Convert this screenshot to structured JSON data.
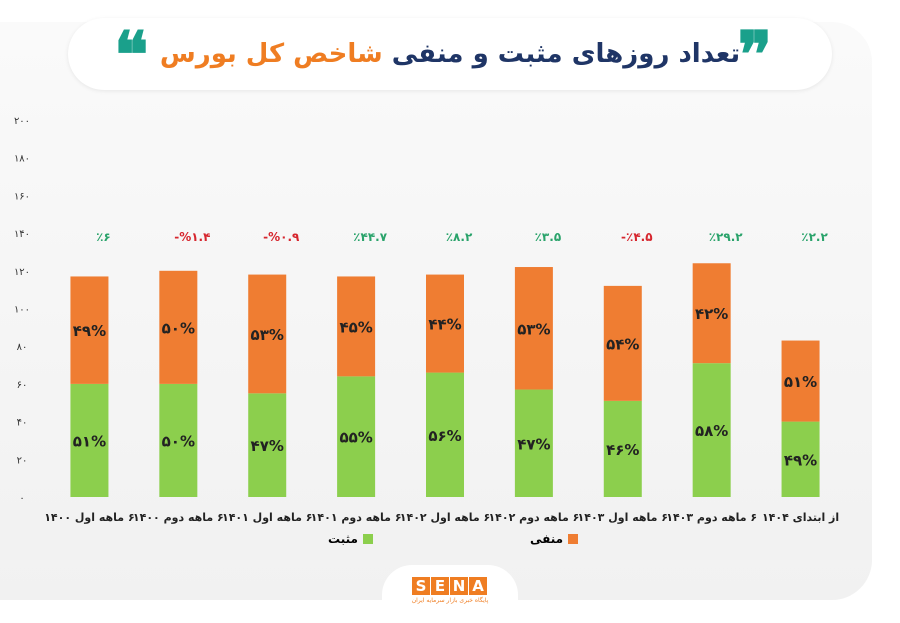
{
  "title": {
    "main": "تعداد روزهای مثبت و منفی",
    "highlight": "شاخص کل بورس"
  },
  "logo": {
    "text": "SENA",
    "subtitle": "پایگاه خبری بازار سرمایه ایران"
  },
  "colors": {
    "positive": "#8ccf4d",
    "negative": "#ef7d32",
    "up_change": "#2aa36b",
    "down_change": "#d6262e",
    "title": "#1f3566",
    "accent": "#ef7d22",
    "quote": "#1aa08b"
  },
  "chart_data": {
    "type": "bar",
    "stacked": true,
    "categories": [
      "۶ ماهه اول ۱۴۰۰",
      "۶ ماهه دوم ۱۴۰۰",
      "۶ ماهه اول ۱۴۰۱",
      "۶ ماهه دوم ۱۴۰۱",
      "۶ ماهه اول ۱۴۰۲",
      "۶ ماهه دوم ۱۴۰۲",
      "۶ ماهه اول ۱۴۰۳",
      "۶ ماهه دوم ۱۴۰۳",
      "از ابتدای ۱۴۰۴"
    ],
    "series": [
      {
        "name": "مثبت",
        "values": [
          60,
          60,
          55,
          64,
          66,
          57,
          51,
          71,
          40
        ],
        "labels": [
          "۵۱%",
          "۵۰%",
          "۴۷%",
          "۵۵%",
          "۵۶%",
          "۴۷%",
          "۴۶%",
          "۵۸%",
          "۴۹%"
        ]
      },
      {
        "name": "منفی",
        "values": [
          57,
          60,
          63,
          53,
          52,
          65,
          61,
          53,
          43
        ],
        "labels": [
          "۴۹%",
          "۵۰%",
          "۵۳%",
          "۴۵%",
          "۴۴%",
          "۵۳%",
          "۵۴%",
          "۴۲%",
          "۵۱%"
        ]
      }
    ],
    "annotations": [
      {
        "text": "٪۶",
        "direction": "up"
      },
      {
        "text": "-%۱.۴",
        "direction": "down"
      },
      {
        "text": "-%۰.۹",
        "direction": "down"
      },
      {
        "text": "٪۴۴.۷",
        "direction": "up"
      },
      {
        "text": "٪۸.۲",
        "direction": "up"
      },
      {
        "text": "٪۳.۵",
        "direction": "up"
      },
      {
        "text": "-٪۴.۵",
        "direction": "down"
      },
      {
        "text": "٪۲۹.۲",
        "direction": "up"
      },
      {
        "text": "٪۲.۲",
        "direction": "up"
      }
    ],
    "ylim": [
      0,
      200
    ],
    "yticks": [
      "۰",
      "۲۰",
      "۴۰",
      "۶۰",
      "۸۰",
      "۱۰۰",
      "۱۲۰",
      "۱۴۰",
      "۱۶۰",
      "۱۸۰",
      "۲۰۰"
    ],
    "grid": false,
    "legend": "bottom"
  }
}
